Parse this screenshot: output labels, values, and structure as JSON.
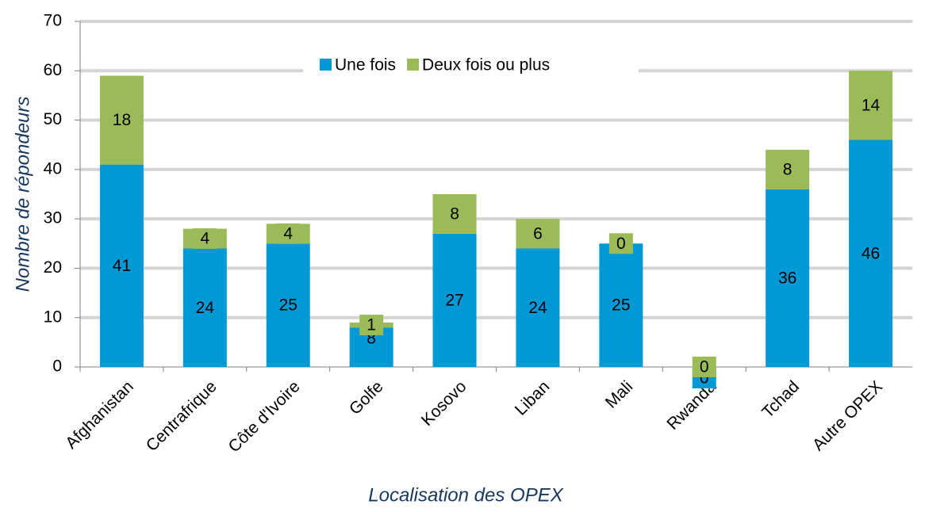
{
  "chart_data": {
    "type": "stacked_bar",
    "y_label": "Nombre de répondeurs",
    "x_label": "Localisation des OPEX",
    "categories": [
      "Afghanistan",
      "Centrafrique",
      "Côte d'Ivoire",
      "Golfe",
      "Kosovo",
      "Liban",
      "Mali",
      "Rwanda",
      "Tchad",
      "Autre OPEX"
    ],
    "series": [
      {
        "name": "Une fois",
        "color": "#0099d6",
        "values": [
          41,
          24,
          25,
          8,
          27,
          24,
          25,
          0,
          36,
          46
        ]
      },
      {
        "name": "Deux fois ou plus",
        "color": "#9bbb59",
        "values": [
          18,
          4,
          4,
          1,
          8,
          6,
          0,
          0,
          8,
          14
        ]
      }
    ],
    "ylim": [
      0,
      70
    ],
    "yticks": [
      0,
      10,
      20,
      30,
      40,
      50,
      60,
      70
    ],
    "grid": true,
    "legend": "top"
  }
}
